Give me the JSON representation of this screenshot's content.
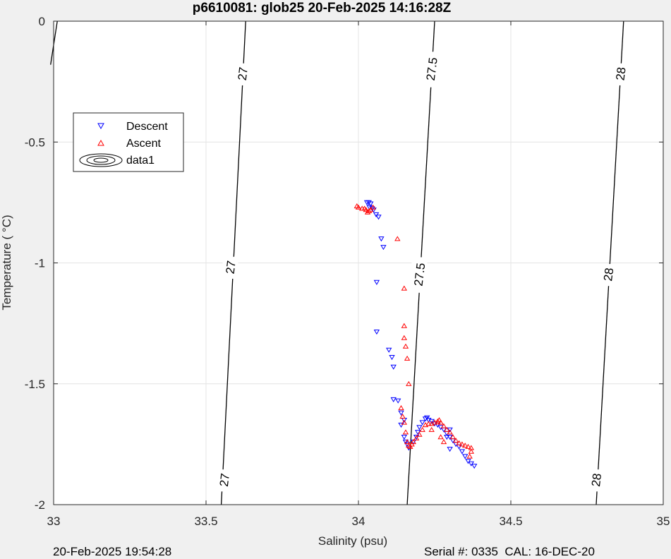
{
  "chart_data": {
    "type": "scatter",
    "title": "p6610081: glob25 20-Feb-2025 14:16:28Z",
    "xlabel": "Salinity (psu)",
    "ylabel": "Temperature (   °C)",
    "xlim": [
      33,
      35
    ],
    "ylim": [
      -2,
      0
    ],
    "xticks": [
      "33",
      "33.5",
      "34",
      "34.5",
      "35"
    ],
    "yticks": [
      "0",
      "-0.5",
      "-1",
      "-1.5",
      "-2"
    ],
    "grid": true,
    "legend_position": "upper-left",
    "legend": [
      "Descent",
      "Ascent",
      "data1"
    ],
    "density_contours": [
      {
        "label": "27",
        "points": [
          [
            33.012,
            0
          ],
          [
            32.99,
            -0.18
          ]
        ]
      },
      {
        "label": "27",
        "points": [
          [
            33.63,
            0
          ],
          [
            33.55,
            -2
          ]
        ]
      },
      {
        "label": "27.5",
        "points": [
          [
            34.25,
            0
          ],
          [
            34.16,
            -2
          ]
        ]
      },
      {
        "label": "28",
        "points": [
          [
            34.87,
            0
          ],
          [
            34.78,
            -2
          ]
        ]
      }
    ],
    "contour_labels": [
      {
        "text": "27",
        "s": 33.62,
        "t": -0.22
      },
      {
        "text": "27",
        "s": 33.58,
        "t": -1.02
      },
      {
        "text": "27",
        "s": 33.56,
        "t": -1.9
      },
      {
        "text": "27.5",
        "s": 34.24,
        "t": -0.2
      },
      {
        "text": "27.5",
        "s": 34.2,
        "t": -1.05
      },
      {
        "text": "28",
        "s": 34.86,
        "t": -0.22
      },
      {
        "text": "28",
        "s": 34.82,
        "t": -1.05
      },
      {
        "text": "28",
        "s": 34.78,
        "t": -1.9
      }
    ],
    "series": [
      {
        "name": "Descent",
        "color": "#0000ff",
        "marker": "triangle-down",
        "points": [
          [
            34.028,
            -0.75
          ],
          [
            34.034,
            -0.75
          ],
          [
            34.04,
            -0.755
          ],
          [
            34.036,
            -0.77
          ],
          [
            34.045,
            -0.775
          ],
          [
            34.05,
            -0.78
          ],
          [
            34.058,
            -0.8
          ],
          [
            34.066,
            -0.81
          ],
          [
            34.075,
            -0.9
          ],
          [
            34.082,
            -0.935
          ],
          [
            34.06,
            -1.08
          ],
          [
            34.06,
            -1.285
          ],
          [
            34.1,
            -1.36
          ],
          [
            34.11,
            -1.39
          ],
          [
            34.115,
            -1.43
          ],
          [
            34.115,
            -1.565
          ],
          [
            34.13,
            -1.57
          ],
          [
            34.14,
            -1.62
          ],
          [
            34.15,
            -1.65
          ],
          [
            34.14,
            -1.67
          ],
          [
            34.15,
            -1.72
          ],
          [
            34.155,
            -1.74
          ],
          [
            34.16,
            -1.75
          ],
          [
            34.165,
            -1.765
          ],
          [
            34.18,
            -1.74
          ],
          [
            34.19,
            -1.72
          ],
          [
            34.195,
            -1.7
          ],
          [
            34.2,
            -1.68
          ],
          [
            34.21,
            -1.66
          ],
          [
            34.22,
            -1.645
          ],
          [
            34.225,
            -1.64
          ],
          [
            34.23,
            -1.65
          ],
          [
            34.24,
            -1.655
          ],
          [
            34.25,
            -1.665
          ],
          [
            34.26,
            -1.67
          ],
          [
            34.27,
            -1.68
          ],
          [
            34.28,
            -1.69
          ],
          [
            34.29,
            -1.705
          ],
          [
            34.3,
            -1.72
          ],
          [
            34.31,
            -1.735
          ],
          [
            34.32,
            -1.75
          ],
          [
            34.33,
            -1.76
          ],
          [
            34.34,
            -1.78
          ],
          [
            34.35,
            -1.8
          ],
          [
            34.36,
            -1.82
          ],
          [
            34.37,
            -1.83
          ],
          [
            34.38,
            -1.84
          ],
          [
            34.3,
            -1.69
          ],
          [
            34.29,
            -1.72
          ],
          [
            34.3,
            -1.77
          ]
        ]
      },
      {
        "name": "Ascent",
        "color": "#ff0000",
        "marker": "triangle-up",
        "points": [
          [
            33.995,
            -0.765
          ],
          [
            34.0,
            -0.77
          ],
          [
            34.012,
            -0.775
          ],
          [
            34.02,
            -0.775
          ],
          [
            34.025,
            -0.78
          ],
          [
            34.03,
            -0.79
          ],
          [
            34.035,
            -0.785
          ],
          [
            34.04,
            -0.78
          ],
          [
            34.048,
            -0.77
          ],
          [
            34.128,
            -0.9
          ],
          [
            34.15,
            -1.105
          ],
          [
            34.15,
            -1.26
          ],
          [
            34.15,
            -1.31
          ],
          [
            34.155,
            -1.345
          ],
          [
            34.16,
            -1.395
          ],
          [
            34.165,
            -1.5
          ],
          [
            34.14,
            -1.6
          ],
          [
            34.145,
            -1.635
          ],
          [
            34.15,
            -1.66
          ],
          [
            34.155,
            -1.7
          ],
          [
            34.16,
            -1.74
          ],
          [
            34.165,
            -1.755
          ],
          [
            34.17,
            -1.76
          ],
          [
            34.175,
            -1.75
          ],
          [
            34.18,
            -1.74
          ],
          [
            34.19,
            -1.725
          ],
          [
            34.2,
            -1.71
          ],
          [
            34.21,
            -1.69
          ],
          [
            34.22,
            -1.67
          ],
          [
            34.23,
            -1.665
          ],
          [
            34.24,
            -1.665
          ],
          [
            34.25,
            -1.66
          ],
          [
            34.26,
            -1.655
          ],
          [
            34.265,
            -1.65
          ],
          [
            34.27,
            -1.66
          ],
          [
            34.28,
            -1.675
          ],
          [
            34.29,
            -1.69
          ],
          [
            34.3,
            -1.7
          ],
          [
            34.31,
            -1.72
          ],
          [
            34.32,
            -1.735
          ],
          [
            34.33,
            -1.745
          ],
          [
            34.34,
            -1.75
          ],
          [
            34.35,
            -1.755
          ],
          [
            34.36,
            -1.76
          ],
          [
            34.37,
            -1.765
          ],
          [
            34.37,
            -1.78
          ],
          [
            34.365,
            -1.8
          ],
          [
            34.28,
            -1.74
          ],
          [
            34.27,
            -1.72
          ],
          [
            34.24,
            -1.69
          ]
        ]
      }
    ]
  },
  "footer": {
    "left": "20-Feb-2025 19:54:28",
    "right": "Serial #: 0335  CAL: 16-DEC-20"
  }
}
